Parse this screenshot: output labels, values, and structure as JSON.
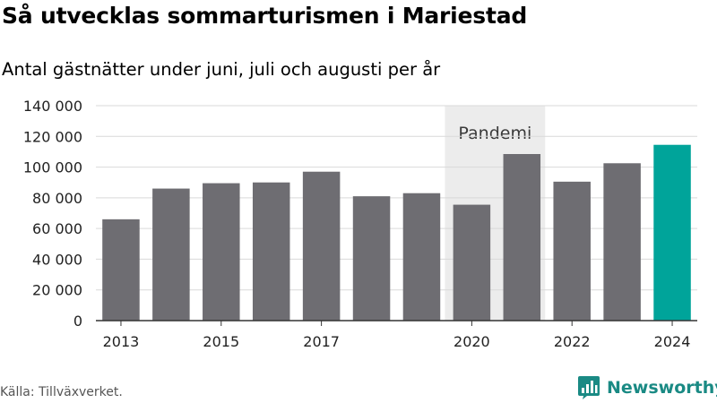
{
  "header": {
    "title": "Så utvecklas sommarturismen i Mariestad",
    "subtitle": "Antal gästnätter under juni, juli och augusti per år"
  },
  "footer": {
    "source": "Källa: Tillväxverket.",
    "brand": "Newsworthy",
    "brand_icon": "newsworthy-logo-icon"
  },
  "colors": {
    "bar": "#6e6d72",
    "highlight": "#00a49a",
    "band": "#ececec",
    "grid": "#d9d9d9",
    "brand": "#1a8a84"
  },
  "chart_data": {
    "type": "bar",
    "title": "Så utvecklas sommarturismen i Mariestad",
    "subtitle": "Antal gästnätter under juni, juli och augusti per år",
    "xlabel": "",
    "ylabel": "",
    "categories": [
      "2013",
      "2014",
      "2015",
      "2016",
      "2017",
      "2018",
      "2019",
      "2020",
      "2021",
      "2022",
      "2023",
      "2024"
    ],
    "values": [
      66000,
      86000,
      89500,
      90000,
      97000,
      81000,
      83000,
      75500,
      108500,
      90500,
      102500,
      114500
    ],
    "x_tick_labels": [
      "2013",
      "2015",
      "2017",
      "2020",
      "2022",
      "2024"
    ],
    "highlight_category": "2024",
    "ylim": [
      0,
      140000
    ],
    "yticks": [
      0,
      20000,
      40000,
      60000,
      80000,
      100000,
      120000,
      140000
    ],
    "ytick_labels": [
      "0",
      "20 000",
      "40 000",
      "60 000",
      "80 000",
      "100 000",
      "120 000",
      "140 000"
    ],
    "grid": true,
    "annotations": [
      {
        "type": "band",
        "label": "Pandemi",
        "from": "2020",
        "to": "2021"
      }
    ]
  }
}
